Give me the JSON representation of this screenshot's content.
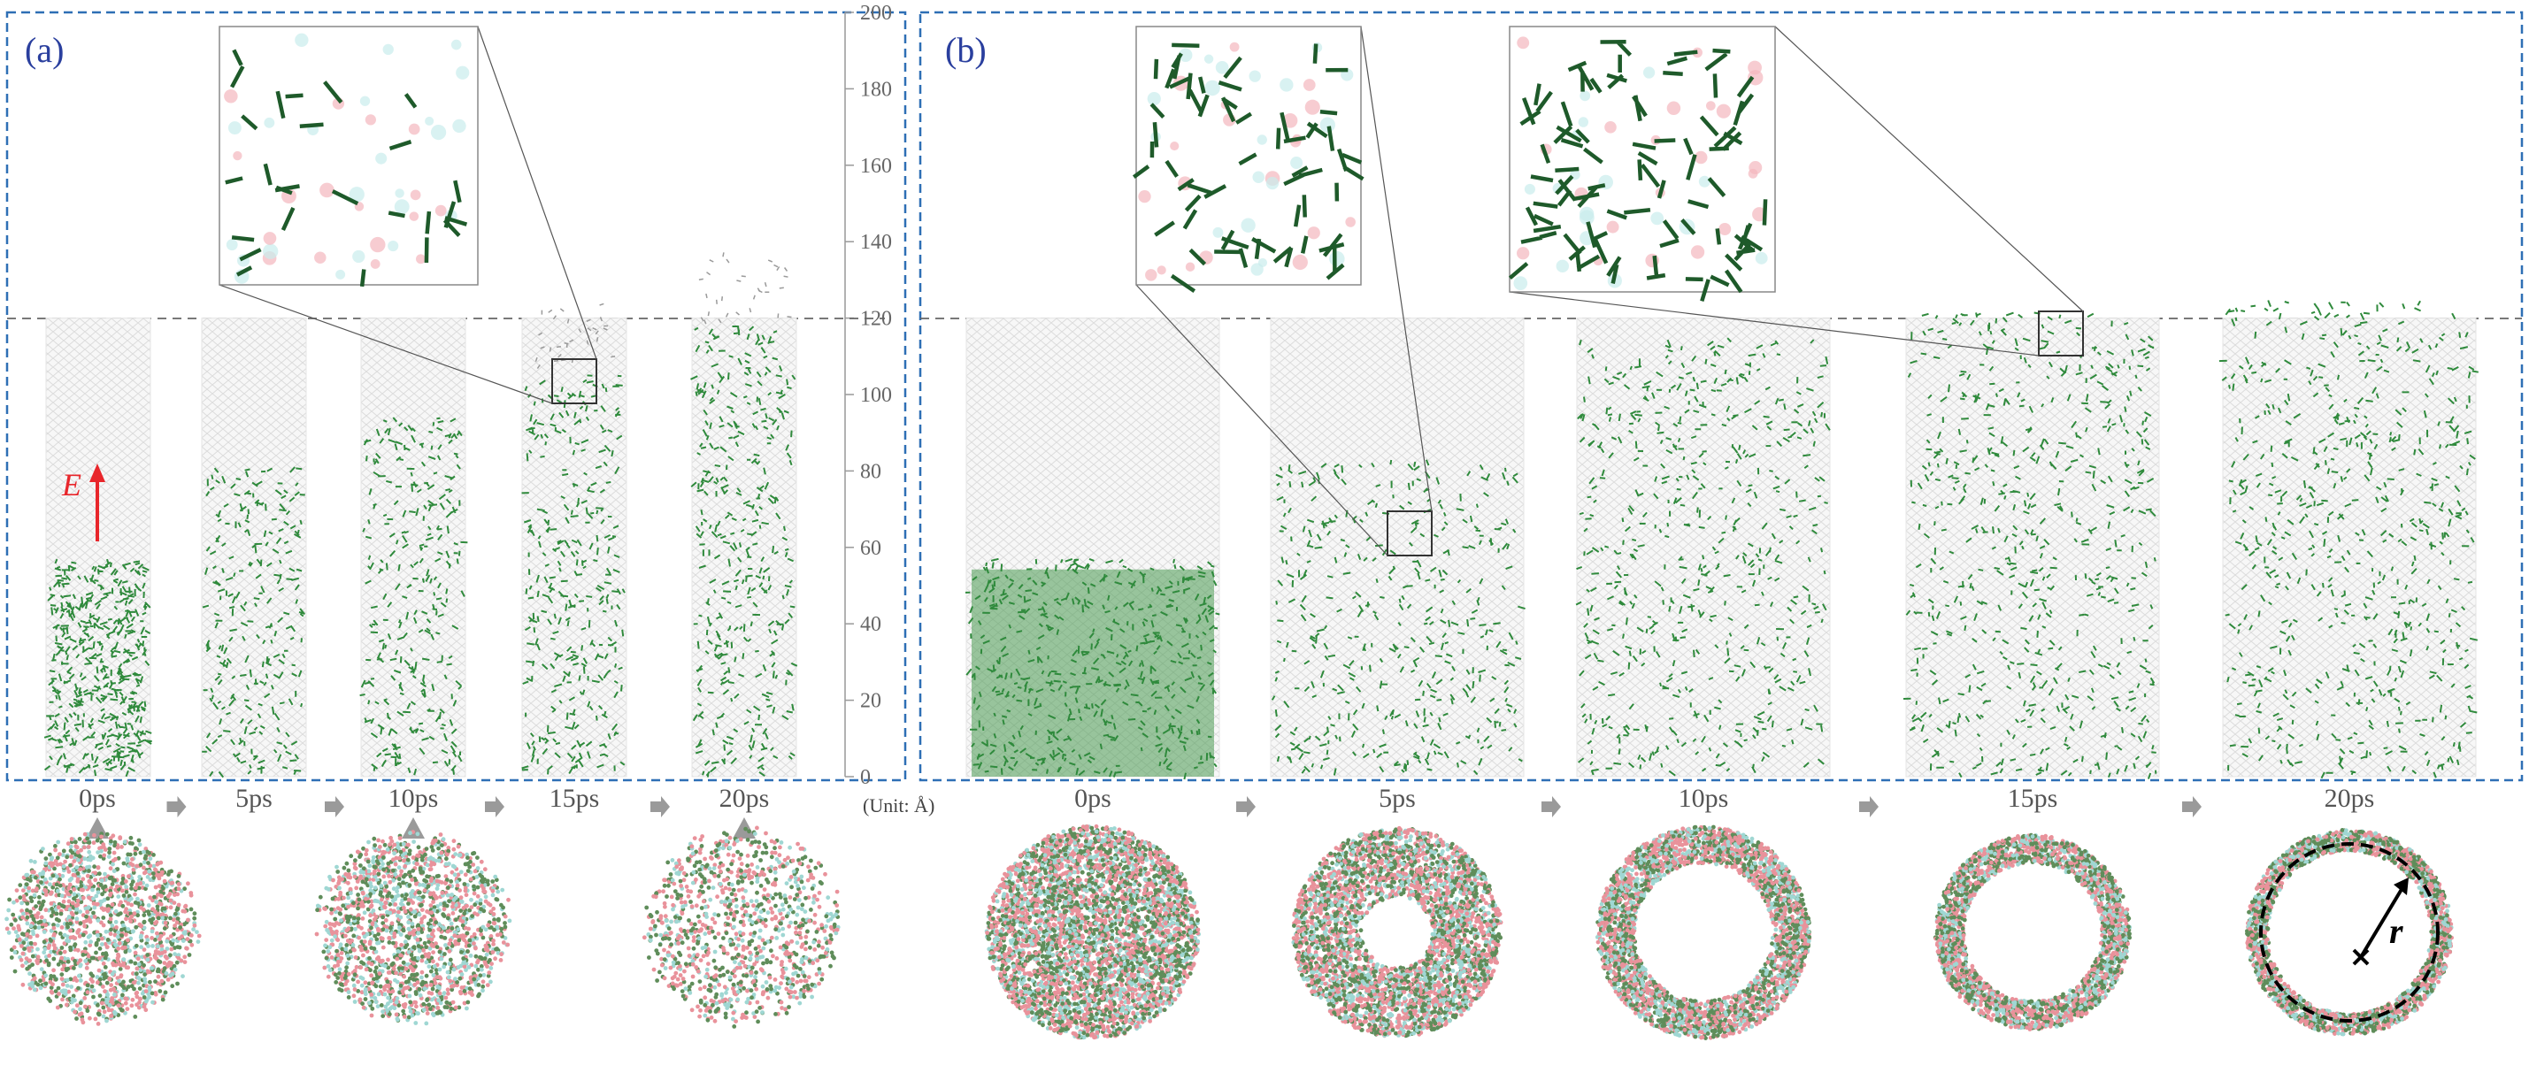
{
  "panels": [
    {
      "label": "(a)",
      "times": [
        "0ps",
        "5ps",
        "10ps",
        "15ps",
        "20ps"
      ],
      "has_side_view_markers": [
        true,
        false,
        true,
        false,
        true
      ]
    },
    {
      "label": "(b)",
      "times": [
        "0ps",
        "5ps",
        "10ps",
        "15ps",
        "20ps"
      ]
    }
  ],
  "axis": {
    "ticks": [
      "0",
      "20",
      "40",
      "60",
      "80",
      "100",
      "120",
      "140",
      "160",
      "180",
      "200"
    ],
    "unit": "(Unit: Å)",
    "dashed_level": 120
  },
  "annotations": {
    "field_label": "E",
    "radius_label": "r"
  },
  "colors": {
    "frame_dash": "#2e6fb5",
    "label_blue": "#2a3f9e",
    "molecule_green": "#2f8a3c",
    "molecule_dark": "#1e5a2a",
    "arrow_red": "#e8262b",
    "grey_arrow": "#9a9a9a",
    "lattice": "#d8d8d8",
    "pink_atom": "#f4b6bd",
    "cyan_atom": "#c9ecec"
  },
  "fill_heights_a": [
    57,
    81,
    94,
    105,
    118
  ],
  "fill_heights_b": [
    57,
    83,
    115,
    122,
    125
  ]
}
